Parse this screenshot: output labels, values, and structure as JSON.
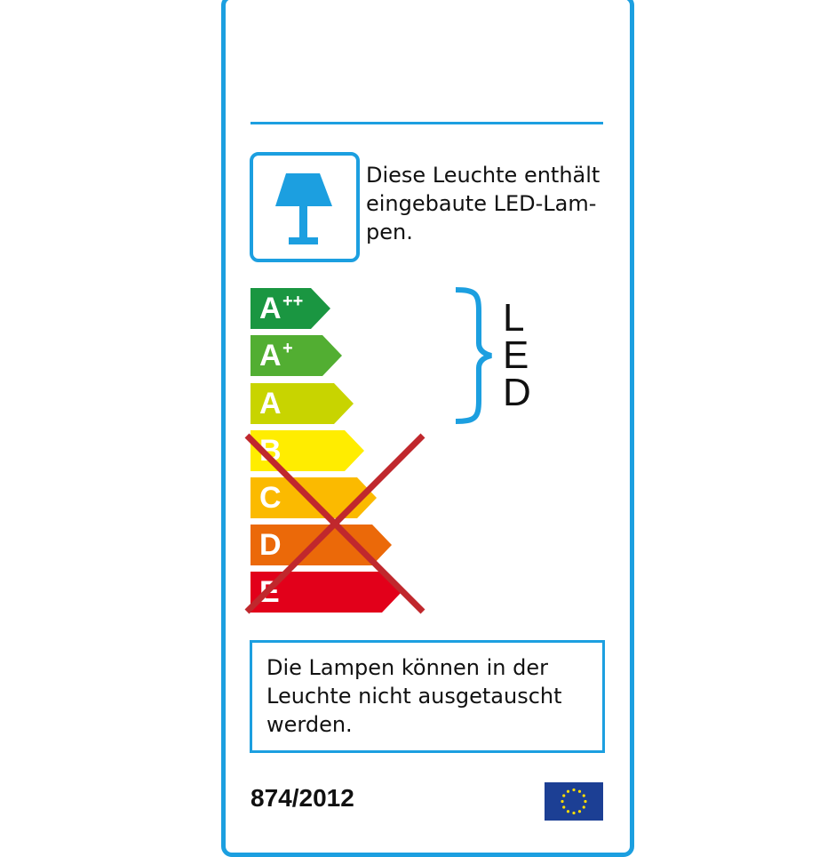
{
  "label": {
    "intro_lines": [
      "Diese Leuchte enthält",
      "eingebaute LED-Lam-",
      "pen."
    ],
    "classes": [
      {
        "base": "A",
        "sup": "++",
        "color": "#1a9641",
        "crossed": false
      },
      {
        "base": "A",
        "sup": "+",
        "color": "#52ae32",
        "crossed": false
      },
      {
        "base": "A",
        "sup": "",
        "color": "#c8d400",
        "crossed": false
      },
      {
        "base": "B",
        "sup": "",
        "color": "#ffed00",
        "crossed": true
      },
      {
        "base": "C",
        "sup": "",
        "color": "#fbba00",
        "crossed": true
      },
      {
        "base": "D",
        "sup": "",
        "color": "#eb6909",
        "crossed": true
      },
      {
        "base": "E",
        "sup": "",
        "color": "#e2001a",
        "crossed": true
      }
    ],
    "led_letters": [
      "L",
      "E",
      "D"
    ],
    "note_lines": [
      "Die Lampen können in der",
      "Leuchte nicht ausgetauscht",
      "werden."
    ],
    "regulation": "874/2012",
    "accent_color": "#1c9fe0",
    "cross_color": "#c0282d",
    "icons": [
      "table-lamp-icon",
      "eu-flag-icon"
    ]
  }
}
